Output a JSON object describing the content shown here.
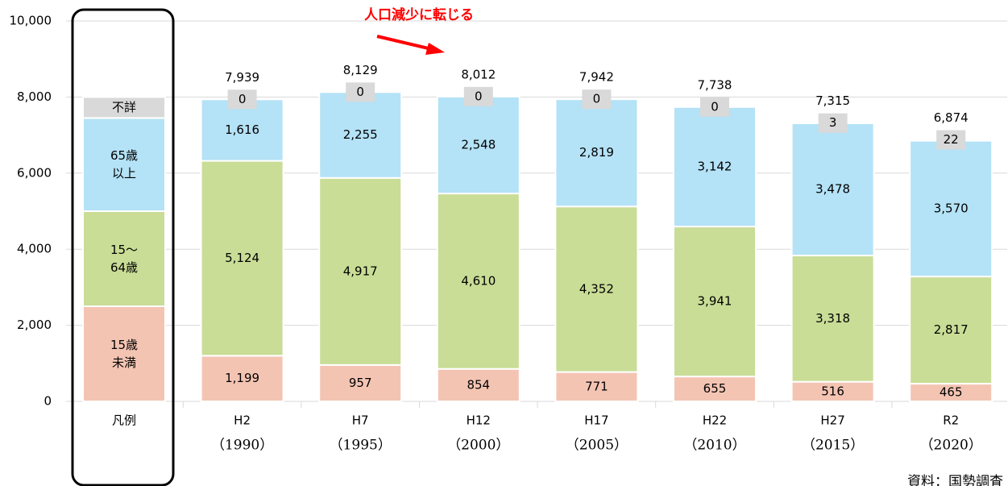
{
  "chart_data": {
    "type": "stacked_bar",
    "annotation": "人口減少に転じる",
    "source": "資料：国勢調査",
    "legend_category": "凡例",
    "categories": [
      "H2",
      "H7",
      "H12",
      "H17",
      "H22",
      "H27",
      "R2"
    ],
    "category_years": [
      "（1990）",
      "（1995）",
      "（2000）",
      "（2005）",
      "（2010）",
      "（2015）",
      "（2020）"
    ],
    "series": [
      {
        "name": "15歳\n未満",
        "color": "#f4c4b3",
        "values": [
          1199,
          957,
          854,
          771,
          655,
          516,
          465
        ],
        "value_labels": [
          "1,199",
          "957",
          "854",
          "771",
          "655",
          "516",
          "465"
        ]
      },
      {
        "name": "15～\n64歳",
        "color": "#c9dd96",
        "values": [
          5124,
          4917,
          4610,
          4352,
          3941,
          3318,
          2817
        ],
        "value_labels": [
          "5,124",
          "4,917",
          "4,610",
          "4,352",
          "3,941",
          "3,318",
          "2,817"
        ]
      },
      {
        "name": "65歳\n以上",
        "color": "#b4e2f6",
        "values": [
          1616,
          2255,
          2548,
          2819,
          3142,
          3478,
          3570
        ],
        "value_labels": [
          "1,616",
          "2,255",
          "2,548",
          "2,819",
          "3,142",
          "3,478",
          "3,570"
        ]
      },
      {
        "name": "不詳",
        "color": "#d9d9d9",
        "values": [
          0,
          0,
          0,
          0,
          0,
          3,
          22
        ]
      }
    ],
    "totals": [
      7939,
      8129,
      8012,
      7942,
      7738,
      7315,
      6874
    ],
    "total_labels": [
      "7,939",
      "8,129",
      "8,012",
      "7,942",
      "7,738",
      "7,315",
      "6,874"
    ],
    "ylim": [
      0,
      10000
    ],
    "yticks": [
      0,
      {
        "value": 2000,
        "label": "2,000"
      },
      {
        "value": 4000,
        "label": "4,000"
      },
      {
        "value": 6000,
        "label": "6,000"
      },
      {
        "value": 8000,
        "label": "8,000"
      },
      {
        "value": 10000,
        "label": "10,000"
      }
    ],
    "grid": true
  }
}
